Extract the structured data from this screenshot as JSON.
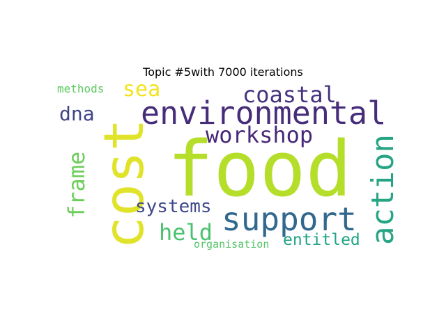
{
  "title": "Topic #5with 7000 iterations",
  "words": [
    {
      "text": "food",
      "color": "#b5de2b"
    },
    {
      "text": "cost",
      "color": "#e0e32a"
    },
    {
      "text": "environmental",
      "color": "#472c7a"
    },
    {
      "text": "support",
      "color": "#31688e"
    },
    {
      "text": "action",
      "color": "#26a585"
    },
    {
      "text": "workshop",
      "color": "#482878"
    },
    {
      "text": "coastal",
      "color": "#46337e"
    },
    {
      "text": "frame",
      "color": "#6ccd5a"
    },
    {
      "text": "systems",
      "color": "#3e4989"
    },
    {
      "text": "held",
      "color": "#4ac16d"
    },
    {
      "text": "sea",
      "color": "#f2e41c"
    },
    {
      "text": "dna",
      "color": "#414487"
    },
    {
      "text": "entitled",
      "color": "#20a386"
    },
    {
      "text": "methods",
      "color": "#5ec962"
    },
    {
      "text": "organisation",
      "color": "#54c568"
    }
  ]
}
